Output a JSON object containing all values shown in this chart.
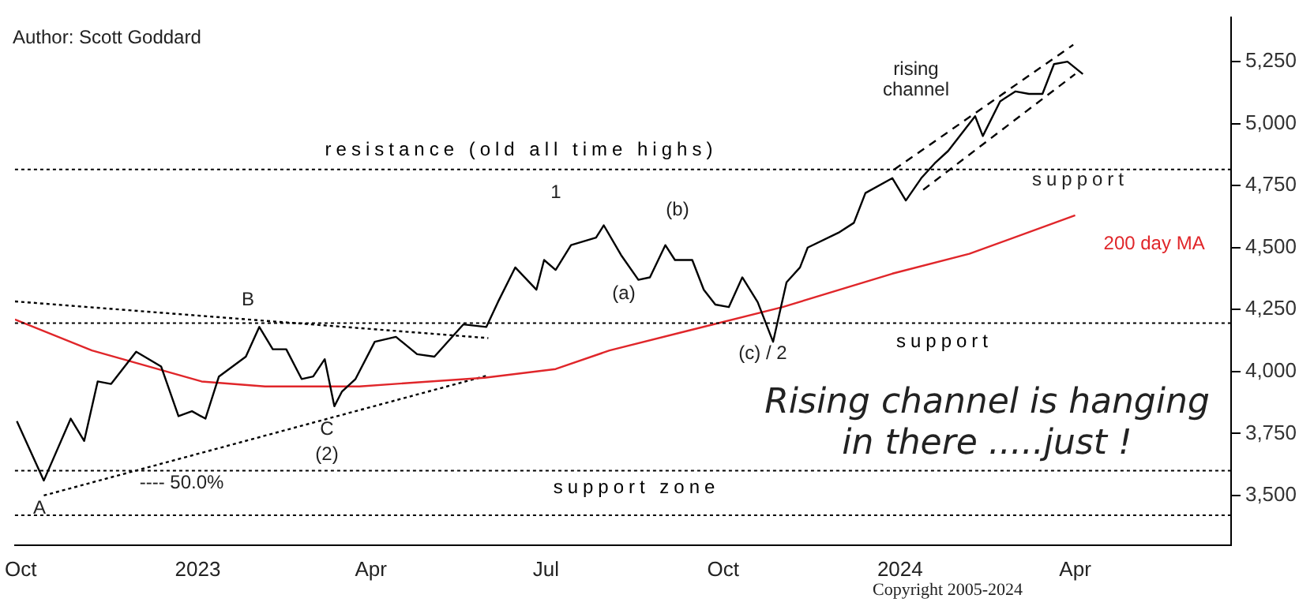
{
  "chart_data": {
    "type": "line",
    "marker": "none",
    "legend": false,
    "grid": false,
    "xlim": [
      "2022-09-28",
      "2024-06-21"
    ],
    "xticks": [
      {
        "value": "2022-10-01",
        "label": "Oct"
      },
      {
        "value": "2023-01-01",
        "label": "2023"
      },
      {
        "value": "2023-04-01",
        "label": "Apr"
      },
      {
        "value": "2023-07-01",
        "label": "Jul"
      },
      {
        "value": "2023-10-01",
        "label": "Oct"
      },
      {
        "value": "2024-01-01",
        "label": "2024"
      },
      {
        "value": "2024-04-01",
        "label": "Apr"
      }
    ],
    "ylim": [
      3300,
      5430
    ],
    "yticks": [
      {
        "value": 3500,
        "label": "3,500"
      },
      {
        "value": 3750,
        "label": "3,750"
      },
      {
        "value": 4000,
        "label": "4,000"
      },
      {
        "value": 4250,
        "label": "4,250"
      },
      {
        "value": 4500,
        "label": "4,500"
      },
      {
        "value": 4750,
        "label": "4,750"
      },
      {
        "value": 5000,
        "label": "5,000"
      },
      {
        "value": 5250,
        "label": "5,250"
      }
    ],
    "x": [
      "2022-09-29",
      "2022-10-13",
      "2022-10-27",
      "2022-11-03",
      "2022-11-10",
      "2022-11-17",
      "2022-11-30",
      "2022-12-13",
      "2022-12-22",
      "2022-12-29",
      "2023-01-05",
      "2023-01-12",
      "2023-01-26",
      "2023-02-02",
      "2023-02-09",
      "2023-02-16",
      "2023-02-24",
      "2023-03-02",
      "2023-03-08",
      "2023-03-13",
      "2023-03-17",
      "2023-03-24",
      "2023-04-03",
      "2023-04-14",
      "2023-04-25",
      "2023-05-04",
      "2023-05-19",
      "2023-05-31",
      "2023-06-06",
      "2023-06-15",
      "2023-06-26",
      "2023-06-30",
      "2023-07-06",
      "2023-07-14",
      "2023-07-27",
      "2023-07-31",
      "2023-08-09",
      "2023-08-18",
      "2023-08-24",
      "2023-09-01",
      "2023-09-06",
      "2023-09-15",
      "2023-09-21",
      "2023-09-27",
      "2023-10-04",
      "2023-10-11",
      "2023-10-19",
      "2023-10-27",
      "2023-11-03",
      "2023-11-10",
      "2023-11-14",
      "2023-11-30",
      "2023-12-08",
      "2023-12-14",
      "2023-12-28",
      "2024-01-04",
      "2024-01-12",
      "2024-01-19",
      "2024-01-26",
      "2024-02-02",
      "2024-02-09",
      "2024-02-13",
      "2024-02-22",
      "2024-03-01",
      "2024-03-08",
      "2024-03-15",
      "2024-03-21",
      "2024-03-28",
      "2024-04-05"
    ],
    "series": [
      {
        "color": "#000000",
        "values": [
          3800,
          3560,
          3810,
          3720,
          3960,
          3950,
          4080,
          4020,
          3820,
          3840,
          3810,
          3980,
          4060,
          4180,
          4090,
          4090,
          3970,
          3980,
          4050,
          3860,
          3920,
          3970,
          4120,
          4140,
          4070,
          4060,
          4190,
          4180,
          4280,
          4420,
          4330,
          4450,
          4410,
          4510,
          4540,
          4590,
          4470,
          4370,
          4380,
          4510,
          4450,
          4450,
          4330,
          4270,
          4260,
          4380,
          4280,
          4120,
          4360,
          4420,
          4500,
          4560,
          4600,
          4720,
          4780,
          4690,
          4780,
          4840,
          4890,
          4960,
          5030,
          4950,
          5090,
          5130,
          5120,
          5120,
          5240,
          5250,
          5200
        ]
      },
      {
        "name": "200 day MA",
        "color": "#e0262a",
        "x": [
          "2022-09-28",
          "2022-11-07",
          "2023-01-03",
          "2023-02-05",
          "2023-03-26",
          "2023-05-30",
          "2023-07-06",
          "2023-08-03",
          "2023-09-13",
          "2023-11-01",
          "2023-12-28",
          "2024-02-06",
          "2024-04-01"
        ],
        "values": [
          4210,
          4085,
          3960,
          3940,
          3940,
          3975,
          4010,
          4085,
          4165,
          4260,
          4395,
          4475,
          4630
        ]
      },
      {
        "color": "#000000",
        "line_style": "dotted",
        "x": [
          "2022-10-13",
          "2023-06-01"
        ],
        "values": [
          3500,
          3985
        ]
      },
      {
        "color": "#000000",
        "line_style": "dotted",
        "x": [
          "2022-09-28",
          "2023-06-01"
        ],
        "values": [
          4283,
          4135
        ]
      },
      {
        "color": "#000000",
        "line_style": "dashed",
        "x": [
          "2023-12-29",
          "2024-03-31"
        ],
        "values": [
          4815,
          5318
        ]
      },
      {
        "color": "#000000",
        "line_style": "dashed",
        "x": [
          "2024-01-13",
          "2024-04-01"
        ],
        "values": [
          4733,
          5200
        ]
      }
    ],
    "ref_lines": [
      {
        "axis": "y",
        "value": 4815,
        "line_style": "dotted",
        "label": "resistance (old all time highs)"
      },
      {
        "axis": "y",
        "value": 4195,
        "line_style": "dotted",
        "label": "support"
      },
      {
        "axis": "y",
        "value": 3600,
        "line_style": "dotted",
        "label": "support zone"
      },
      {
        "axis": "y",
        "value": 3420,
        "line_style": "dotted"
      }
    ],
    "annotations": [
      "Author: Scott Goddard",
      "Rising channel is hanging\nin there .....just !",
      "Copyright 2005-2024",
      "support",
      "---- 50.0%",
      "A",
      "B",
      "C",
      "(2)",
      "1",
      "(a)",
      "(b)",
      "(c) / 2",
      "rising\nchannel"
    ]
  }
}
